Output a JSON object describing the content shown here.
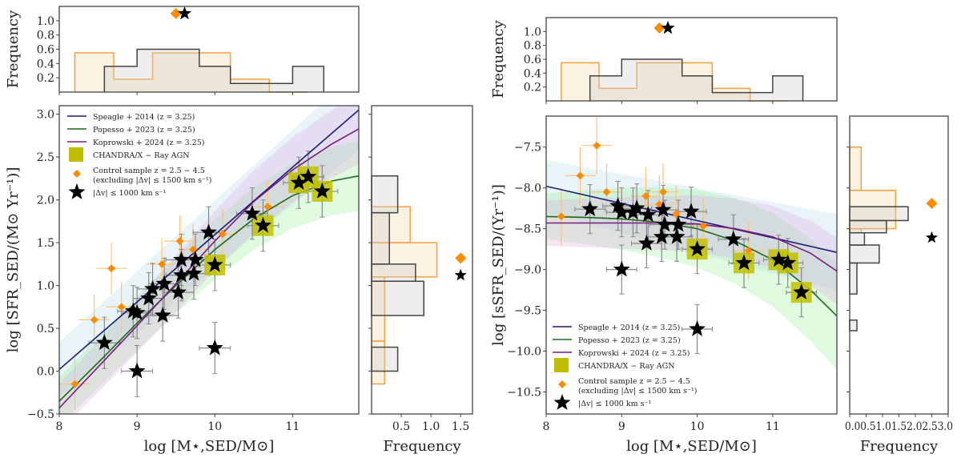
{
  "chart_data": [
    {
      "id": "left",
      "type": "scatter",
      "title": "",
      "xlabel": "log [M⋆,SED/M⊙]",
      "ylabel": "log [SFR_SED/(M⊙ Yr⁻¹)]",
      "xlim": [
        8,
        11.85
      ],
      "ylim": [
        -0.5,
        3.1
      ],
      "xticks": [
        "8",
        "9",
        "10",
        "11"
      ],
      "yticks": [
        "−0.5",
        "0.0",
        "0.5",
        "1.0",
        "1.5",
        "2.0",
        "2.5",
        "3.0"
      ],
      "legend_position": "top-left",
      "legend": [
        {
          "label": "Speagle + 2014 (z = 3.25)",
          "kind": "line",
          "color": "#1a1a7a"
        },
        {
          "label": "Popesso + 2023 (z = 3.25)",
          "kind": "line",
          "color": "#1a6b1a"
        },
        {
          "label": "Koprowski + 2024 (z = 3.25)",
          "kind": "line",
          "color": "#7a1a80"
        },
        {
          "label": "CHANDRA/X − Ray AGN",
          "kind": "square",
          "color": "#bfbf00"
        },
        {
          "label": "Control sample z = 2.5 − 4.5",
          "label2": "(excluding |Δv| ≤ 1500 km s⁻¹)",
          "kind": "diamond",
          "color": "#ff8c00"
        },
        {
          "label": "|Δv| ≤ 1000 km s⁻¹",
          "kind": "star",
          "color": "#000000"
        }
      ],
      "relations": [
        {
          "name": "Speagle + 2014",
          "color": "#1a1a7a",
          "x": [
            8,
            11.85
          ],
          "y": [
            0.02,
            3.05
          ],
          "band_color": "#add8e6"
        },
        {
          "name": "Popesso + 2023",
          "color": "#1a6b1a",
          "x": [
            8,
            8.5,
            9,
            9.5,
            10,
            10.5,
            11,
            11.5,
            11.85
          ],
          "y": [
            -0.35,
            0.1,
            0.56,
            1.0,
            1.42,
            1.78,
            2.05,
            2.22,
            2.28
          ],
          "band_color": "#90ee90"
        },
        {
          "name": "Koprowski + 2024",
          "color": "#7a1a80",
          "x": [
            8,
            8.5,
            9,
            9.5,
            10,
            10.5,
            11,
            11.5,
            11.85
          ],
          "y": [
            -0.43,
            0.05,
            0.53,
            1.02,
            1.52,
            1.98,
            2.35,
            2.65,
            2.83
          ],
          "band_color": "#dda0dd"
        }
      ],
      "control_sample": [
        {
          "x": 8.2,
          "y": -0.15,
          "xerr": 0.2,
          "yerr": 0.3
        },
        {
          "x": 8.45,
          "y": 0.6,
          "xerr": 0.2,
          "yerr": 0.3
        },
        {
          "x": 8.67,
          "y": 1.2,
          "xerr": 0.2,
          "yerr": 0.3
        },
        {
          "x": 8.8,
          "y": 0.75,
          "xerr": 0.2,
          "yerr": 0.3
        },
        {
          "x": 9.32,
          "y": 1.25,
          "xerr": 0.2,
          "yerr": 0.3
        },
        {
          "x": 9.55,
          "y": 1.52,
          "xerr": 0.2,
          "yerr": 0.3
        },
        {
          "x": 9.72,
          "y": 1.42,
          "xerr": 0.2,
          "yerr": 0.3
        },
        {
          "x": 10.1,
          "y": 1.6,
          "xerr": 0.2,
          "yerr": 0.3
        },
        {
          "x": 10.68,
          "y": 1.92,
          "xerr": 0.2,
          "yerr": 0.3
        }
      ],
      "close_pairs": [
        {
          "x": 8.58,
          "y": 0.33,
          "agn": false
        },
        {
          "x": 8.95,
          "y": 0.7,
          "agn": false
        },
        {
          "x": 9.0,
          "y": 0.68,
          "agn": false
        },
        {
          "x": 9.0,
          "y": 0.0,
          "agn": false
        },
        {
          "x": 9.15,
          "y": 0.85,
          "agn": false
        },
        {
          "x": 9.2,
          "y": 0.96,
          "agn": false
        },
        {
          "x": 9.33,
          "y": 0.65,
          "agn": false
        },
        {
          "x": 9.35,
          "y": 1.02,
          "agn": false
        },
        {
          "x": 9.53,
          "y": 0.92,
          "agn": false
        },
        {
          "x": 9.57,
          "y": 1.12,
          "agn": false
        },
        {
          "x": 9.57,
          "y": 1.3,
          "agn": false
        },
        {
          "x": 9.73,
          "y": 1.14,
          "agn": false
        },
        {
          "x": 9.75,
          "y": 1.3,
          "agn": false
        },
        {
          "x": 9.92,
          "y": 1.62,
          "agn": false
        },
        {
          "x": 10.0,
          "y": 1.24,
          "agn": true
        },
        {
          "x": 10.0,
          "y": 0.27,
          "agn": false
        },
        {
          "x": 10.48,
          "y": 1.84,
          "agn": false
        },
        {
          "x": 10.62,
          "y": 1.7,
          "agn": true
        },
        {
          "x": 11.08,
          "y": 2.2,
          "agn": true
        },
        {
          "x": 11.2,
          "y": 2.27,
          "agn": true
        },
        {
          "x": 11.38,
          "y": 2.1,
          "agn": true
        }
      ],
      "top_hist": {
        "ylabel": "Frequency",
        "yticks": [
          "0.2",
          "0.4",
          "0.6",
          "0.8",
          "1.0"
        ],
        "ylim": [
          0,
          1.2
        ],
        "control": {
          "edges": [
            8.2,
            8.7,
            9.2,
            10.2,
            10.7,
            11.2
          ],
          "values": [
            0.55,
            0.18,
            0.55,
            0.18,
            0.0
          ]
        },
        "pairs": {
          "edges": [
            8.58,
            9.0,
            9.8,
            10.2,
            11.0,
            11.4
          ],
          "values": [
            0.36,
            0.6,
            0.36,
            0.12,
            0.36
          ]
        },
        "control_median": {
          "x": 9.5,
          "y": 1.1
        },
        "pairs_median": {
          "x": 9.57,
          "y": 1.1
        }
      },
      "side_hist": {
        "xlabel": "Frequency",
        "xticks": [
          "0.5",
          "1.0",
          "1.5"
        ],
        "xlim": [
          0,
          1.7
        ],
        "control": {
          "edges": [
            -0.15,
            0.35,
            0.85,
            1.1,
            1.5,
            1.92
          ],
          "values": [
            0.22,
            0.22,
            1.1,
            0.65,
            0.0
          ]
        },
        "control_bins": [
          {
            "y0": -0.15,
            "y1": 0.35,
            "v": 0.22
          },
          {
            "y0": 0.35,
            "y1": 1.1,
            "v": 0.22
          },
          {
            "y0": 1.1,
            "y1": 1.5,
            "v": 1.1
          },
          {
            "y0": 1.5,
            "y1": 1.92,
            "v": 0.65
          }
        ],
        "pairs_bins": [
          {
            "y0": 0.0,
            "y1": 0.28,
            "v": 0.44
          },
          {
            "y0": 0.28,
            "y1": 0.65,
            "v": 0.0
          },
          {
            "y0": 0.65,
            "y1": 1.05,
            "v": 0.88
          },
          {
            "y0": 1.05,
            "y1": 1.25,
            "v": 0.74
          },
          {
            "y0": 1.25,
            "y1": 1.85,
            "v": 0.3
          },
          {
            "y0": 1.85,
            "y1": 2.28,
            "v": 0.44
          }
        ],
        "control_median": {
          "x": 1.5,
          "y": 1.32
        },
        "pairs_median": {
          "x": 1.5,
          "y": 1.12
        }
      }
    },
    {
      "id": "right",
      "type": "scatter",
      "title": "",
      "xlabel": "log [M⋆,SED/M⊙]",
      "ylabel": "log [sSFR_SED/(Yr⁻¹)]",
      "xlim": [
        8,
        11.85
      ],
      "ylim": [
        -10.77,
        -7.12
      ],
      "xticks": [
        "8",
        "9",
        "10",
        "11"
      ],
      "yticks": [
        "−10.5",
        "−10.0",
        "−9.5",
        "−9.0",
        "−8.5",
        "−8.0",
        "−7.5"
      ],
      "legend_position": "bottom-left",
      "legend": [
        {
          "label": "Speagle + 2014 (z = 3.25)",
          "kind": "line",
          "color": "#1a1a7a"
        },
        {
          "label": "Popesso + 2023 (z = 3.25)",
          "kind": "line",
          "color": "#1a6b1a"
        },
        {
          "label": "Koprowski + 2024 (z = 3.25)",
          "kind": "line",
          "color": "#7a1a80"
        },
        {
          "label": "CHANDRA/X − Ray AGN",
          "kind": "square",
          "color": "#bfbf00"
        },
        {
          "label": "Control sample z = 2.5 − 4.5",
          "label2": "(excluding |Δv| ≤ 1500 km s⁻¹)",
          "kind": "diamond",
          "color": "#ff8c00"
        },
        {
          "label": "|Δv| ≤ 1000 km s⁻¹",
          "kind": "star",
          "color": "#000000"
        }
      ],
      "relations": [
        {
          "name": "Speagle + 2014",
          "color": "#1a1a7a",
          "x": [
            8,
            11.85
          ],
          "y": [
            -7.98,
            -8.79
          ],
          "band_color": "#add8e6"
        },
        {
          "name": "Popesso + 2023",
          "color": "#1a6b1a",
          "x": [
            8,
            8.5,
            9,
            9.5,
            10,
            10.5,
            11,
            11.5,
            11.85
          ],
          "y": [
            -8.35,
            -8.36,
            -8.38,
            -8.42,
            -8.5,
            -8.65,
            -8.88,
            -9.25,
            -9.57
          ],
          "band_color": "#90ee90"
        },
        {
          "name": "Koprowski + 2024",
          "color": "#7a1a80",
          "x": [
            8,
            8.5,
            9,
            9.5,
            10,
            10.5,
            11,
            11.5,
            11.85
          ],
          "y": [
            -8.43,
            -8.43,
            -8.43,
            -8.43,
            -8.44,
            -8.5,
            -8.6,
            -8.8,
            -9.02
          ],
          "band_color": "#dda0dd"
        }
      ],
      "control_sample": [
        {
          "x": 8.2,
          "y": -8.35,
          "xerr": 0.2,
          "yerr": 0.35
        },
        {
          "x": 8.45,
          "y": -7.85,
          "xerr": 0.2,
          "yerr": 0.35
        },
        {
          "x": 8.67,
          "y": -7.48,
          "xerr": 0.2,
          "yerr": 0.35
        },
        {
          "x": 8.8,
          "y": -8.05,
          "xerr": 0.2,
          "yerr": 0.35
        },
        {
          "x": 9.32,
          "y": -8.1,
          "xerr": 0.2,
          "yerr": 0.35
        },
        {
          "x": 9.55,
          "y": -8.05,
          "xerr": 0.2,
          "yerr": 0.35
        },
        {
          "x": 9.5,
          "y": -8.2,
          "xerr": 0.2,
          "yerr": 0.35
        },
        {
          "x": 9.72,
          "y": -8.32,
          "xerr": 0.2,
          "yerr": 0.35
        },
        {
          "x": 10.08,
          "y": -8.47,
          "xerr": 0.2,
          "yerr": 0.35
        },
        {
          "x": 10.68,
          "y": -8.77,
          "xerr": 0.2,
          "yerr": 0.35
        }
      ],
      "close_pairs": [
        {
          "x": 8.58,
          "y": -8.26,
          "agn": false
        },
        {
          "x": 8.95,
          "y": -8.22,
          "agn": false
        },
        {
          "x": 9.0,
          "y": -8.3,
          "agn": false
        },
        {
          "x": 9.0,
          "y": -9.0,
          "agn": false
        },
        {
          "x": 9.15,
          "y": -8.3,
          "agn": false
        },
        {
          "x": 9.2,
          "y": -8.25,
          "agn": false
        },
        {
          "x": 9.33,
          "y": -8.68,
          "agn": false
        },
        {
          "x": 9.35,
          "y": -8.33,
          "agn": false
        },
        {
          "x": 9.53,
          "y": -8.6,
          "agn": false
        },
        {
          "x": 9.55,
          "y": -8.27,
          "agn": false
        },
        {
          "x": 9.57,
          "y": -8.45,
          "agn": false
        },
        {
          "x": 9.73,
          "y": -8.6,
          "agn": false
        },
        {
          "x": 9.75,
          "y": -8.45,
          "agn": false
        },
        {
          "x": 9.92,
          "y": -8.29,
          "agn": false
        },
        {
          "x": 10.0,
          "y": -8.75,
          "agn": true
        },
        {
          "x": 10.0,
          "y": -9.73,
          "agn": false
        },
        {
          "x": 10.48,
          "y": -8.63,
          "agn": false
        },
        {
          "x": 10.62,
          "y": -8.92,
          "agn": true
        },
        {
          "x": 11.08,
          "y": -8.88,
          "agn": true
        },
        {
          "x": 11.2,
          "y": -8.92,
          "agn": true
        },
        {
          "x": 11.38,
          "y": -9.28,
          "agn": true
        }
      ],
      "top_hist": {
        "ylabel": "Frequency",
        "yticks": [
          "0.2",
          "0.4",
          "0.6",
          "0.8",
          "1.0"
        ],
        "ylim": [
          0,
          1.2
        ],
        "control_median": {
          "x": 9.5,
          "y": 1.05
        },
        "pairs_median": {
          "x": 9.57,
          "y": 1.05
        }
      },
      "side_hist": {
        "xlabel": "Frequency",
        "xticks": [
          "0.0",
          "0.5",
          "1.0",
          "1.5",
          "2.0",
          "2.5",
          "3.0"
        ],
        "xticks_text": "0.00.51.01.52.02.53.0",
        "xlim": [
          0,
          3.0
        ],
        "control_bins": [
          {
            "y0": -8.55,
            "y1": -8.03,
            "v": 0.35
          },
          {
            "y0": -8.03,
            "y1": -7.5,
            "v": 0.35
          },
          {
            "y0": -8.5,
            "y1": -8.03,
            "v": 1.4
          }
        ],
        "control_bins_clean": [
          {
            "y0": -8.55,
            "y1": -8.5,
            "v": 0.35
          },
          {
            "y0": -8.5,
            "y1": -8.03,
            "v": 1.4
          },
          {
            "y0": -8.03,
            "y1": -7.5,
            "v": 0.35
          }
        ],
        "pairs_bins": [
          {
            "y0": -9.75,
            "y1": -9.62,
            "v": 0.22
          },
          {
            "y0": -9.62,
            "y1": -9.3,
            "v": 0.0
          },
          {
            "y0": -9.3,
            "y1": -8.92,
            "v": 0.22
          },
          {
            "y0": -8.92,
            "y1": -8.7,
            "v": 0.9
          },
          {
            "y0": -8.7,
            "y1": -8.55,
            "v": 0.45
          },
          {
            "y0": -8.55,
            "y1": -8.4,
            "v": 1.12
          },
          {
            "y0": -8.4,
            "y1": -8.23,
            "v": 1.78
          }
        ],
        "control_median": {
          "x": 2.5,
          "y": -8.19
        },
        "pairs_median": {
          "x": 2.5,
          "y": -8.61
        }
      }
    }
  ]
}
